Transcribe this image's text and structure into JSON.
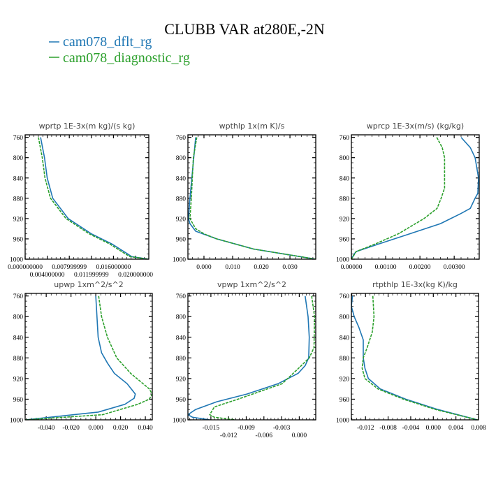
{
  "title": "CLUBB VAR at280E,-2N",
  "legend": [
    {
      "label": "cam078_dflt_rg",
      "color": "#1f77b4",
      "dash": false
    },
    {
      "label": "cam078_diagnostic_rg",
      "color": "#2ca02c",
      "dash": true
    }
  ],
  "chart_data": [
    {
      "type": "line",
      "title": "wprtp  1E-3x(m kg)/(s kg)",
      "ylim": [
        755,
        1000
      ],
      "yreversed": true,
      "yticks": [
        760,
        800,
        840,
        880,
        920,
        960,
        1000
      ],
      "xlim": [
        0,
        0.0224
      ],
      "xticks": [
        0,
        0.004,
        0.008,
        0.012,
        0.016,
        0.02
      ],
      "xticklabels": [
        "0.000000000",
        "0.004000000",
        "0.007999999",
        "0.011999999",
        "0.016000000",
        "0.020000000"
      ],
      "series": [
        {
          "name": "cam078_dflt_rg",
          "y": [
            760,
            800,
            840,
            880,
            920,
            950,
            970,
            990,
            995,
            1000
          ],
          "x": [
            0.0028,
            0.0035,
            0.004,
            0.005,
            0.0078,
            0.012,
            0.0157,
            0.0186,
            0.0193,
            0.0224
          ]
        },
        {
          "name": "cam078_diagnostic_rg",
          "y": [
            760,
            800,
            840,
            880,
            920,
            950,
            970,
            990,
            995,
            1000
          ],
          "x": [
            0.0024,
            0.0031,
            0.0036,
            0.0046,
            0.0074,
            0.0116,
            0.0153,
            0.0182,
            0.019,
            0.0224
          ]
        }
      ]
    },
    {
      "type": "line",
      "title": "wpthlp  1x(m K)/s",
      "ylim": [
        755,
        1000
      ],
      "yreversed": true,
      "yticks": [
        760,
        800,
        840,
        880,
        920,
        960,
        1000
      ],
      "xlim": [
        -0.0056,
        0.039
      ],
      "xticks": [
        0,
        0.01,
        0.02,
        0.03
      ],
      "xticklabels": [
        "0.000",
        "0.010",
        "0.020",
        "0.030"
      ],
      "series": [
        {
          "name": "cam078_dflt_rg",
          "y": [
            760,
            880,
            920,
            930,
            945,
            960,
            980,
            1000
          ],
          "x": [
            -0.0029,
            -0.0049,
            -0.0054,
            -0.0049,
            -0.0029,
            0.0044,
            0.0173,
            0.039
          ]
        },
        {
          "name": "cam078_diagnostic_rg",
          "y": [
            760,
            800,
            880,
            920,
            940,
            950,
            960,
            980,
            1000
          ],
          "x": [
            -0.0025,
            -0.0037,
            -0.0044,
            -0.0049,
            -0.0029,
            0.0,
            0.0044,
            0.0173,
            0.039
          ]
        }
      ]
    },
    {
      "type": "line",
      "title": "wprcp  1E-3x(m/s) (kg/kg)",
      "ylim": [
        755,
        1000
      ],
      "yreversed": true,
      "yticks": [
        760,
        800,
        840,
        880,
        920,
        960,
        1000
      ],
      "xlim": [
        0,
        0.00373
      ],
      "xticks": [
        0,
        0.001,
        0.002,
        0.003
      ],
      "xticklabels": [
        "0.00000",
        "0.00100",
        "0.00200",
        "0.00300"
      ],
      "series": [
        {
          "name": "cam078_dflt_rg",
          "y": [
            760,
            780,
            800,
            840,
            870,
            880,
            900,
            910,
            930,
            950,
            970,
            985,
            990,
            1000
          ],
          "x": [
            0.0032,
            0.00347,
            0.00361,
            0.00371,
            0.00369,
            0.00361,
            0.00347,
            0.0032,
            0.0026,
            0.0017,
            0.0008,
            0.00014,
            8e-05,
            0
          ]
        },
        {
          "name": "cam078_diagnostic_rg",
          "y": [
            760,
            780,
            800,
            860,
            880,
            900,
            920,
            950,
            970,
            985,
            1000
          ],
          "x": [
            0.00249,
            0.00265,
            0.00272,
            0.00272,
            0.00262,
            0.0025,
            0.00212,
            0.00137,
            0.0007,
            0.00014,
            0
          ]
        }
      ]
    },
    {
      "type": "line",
      "title": "upwp  1xm^2/s^2",
      "ylim": [
        755,
        1000
      ],
      "yreversed": true,
      "yticks": [
        760,
        800,
        840,
        880,
        920,
        960,
        1000
      ],
      "xlim": [
        -0.057,
        0.0456
      ],
      "xticks": [
        -0.04,
        -0.02,
        0,
        0.02,
        0.04
      ],
      "xticklabels": [
        "-0.040",
        "-0.020",
        "0.000",
        "0.020",
        "0.040"
      ],
      "series": [
        {
          "name": "cam078_dflt_rg",
          "y": [
            760,
            840,
            870,
            890,
            910,
            930,
            950,
            958,
            970,
            985,
            1000
          ],
          "x": [
            0.0,
            0.0019,
            0.0047,
            0.0094,
            0.015,
            0.0253,
            0.0319,
            0.031,
            0.0235,
            0.0019,
            -0.0567
          ]
        },
        {
          "name": "cam078_diagnostic_rg",
          "y": [
            760,
            800,
            840,
            880,
            910,
            940,
            950,
            960,
            970,
            990,
            1000
          ],
          "x": [
            0.0023,
            0.0047,
            0.0094,
            0.0169,
            0.0282,
            0.0432,
            0.0455,
            0.0432,
            0.0338,
            0.0056,
            -0.0567
          ]
        }
      ]
    },
    {
      "type": "line",
      "title": "vpwp  1xm^2/s^2",
      "ylim": [
        755,
        1000
      ],
      "yreversed": true,
      "yticks": [
        760,
        800,
        840,
        880,
        920,
        960,
        1000
      ],
      "xlim": [
        -0.0189,
        0.0028
      ],
      "xticks": [
        -0.015,
        -0.012,
        -0.009,
        -0.006,
        -0.003,
        0
      ],
      "xticklabels": [
        "-0.015",
        "-0.012",
        "-0.009",
        "-0.006",
        "-0.003",
        "0.000"
      ],
      "series": [
        {
          "name": "cam078_dflt_rg",
          "y": [
            760,
            800,
            840,
            880,
            895,
            910,
            930,
            950,
            965,
            980,
            990,
            995,
            1000
          ],
          "x": [
            0.001,
            0.0015,
            0.0017,
            0.0016,
            0.001,
            -0.0002,
            -0.0036,
            -0.0089,
            -0.014,
            -0.0176,
            -0.0189,
            -0.0181,
            -0.0152
          ]
        },
        {
          "name": "cam078_diagnostic_rg",
          "y": [
            760,
            800,
            860,
            880,
            900,
            930,
            960,
            975,
            990,
            995,
            1000
          ],
          "x": [
            0.0021,
            0.0026,
            0.0025,
            0.0017,
            -0.0001,
            -0.0029,
            -0.0104,
            -0.0144,
            -0.0152,
            -0.0144,
            -0.0109
          ]
        }
      ]
    },
    {
      "type": "line",
      "title": "rtpthlp  1E-3x(kg K)/kg",
      "ylim": [
        755,
        1000
      ],
      "yreversed": true,
      "yticks": [
        760,
        800,
        840,
        880,
        920,
        960,
        1000
      ],
      "xlim": [
        -0.0145,
        0.008
      ],
      "xticks": [
        -0.012,
        -0.008,
        -0.004,
        0,
        0.004,
        0.008
      ],
      "xticklabels": [
        "-0.012",
        "-0.008",
        "-0.004",
        "0.000",
        "0.004",
        "0.008"
      ],
      "series": [
        {
          "name": "cam078_dflt_rg",
          "y": [
            760,
            780,
            800,
            820,
            845,
            880,
            900,
            920,
            940,
            960,
            980,
            1000
          ],
          "x": [
            -0.0143,
            -0.0145,
            -0.014,
            -0.0132,
            -0.0124,
            -0.0124,
            -0.0121,
            -0.0115,
            -0.0094,
            -0.0049,
            0.0008,
            0.0078
          ]
        },
        {
          "name": "cam078_diagnostic_rg",
          "y": [
            760,
            800,
            830,
            860,
            880,
            900,
            920,
            940,
            960,
            980,
            1000
          ],
          "x": [
            -0.0107,
            -0.0105,
            -0.0108,
            -0.0117,
            -0.0124,
            -0.0126,
            -0.0121,
            -0.0098,
            -0.0053,
            0.0004,
            0.0078
          ]
        }
      ]
    }
  ]
}
